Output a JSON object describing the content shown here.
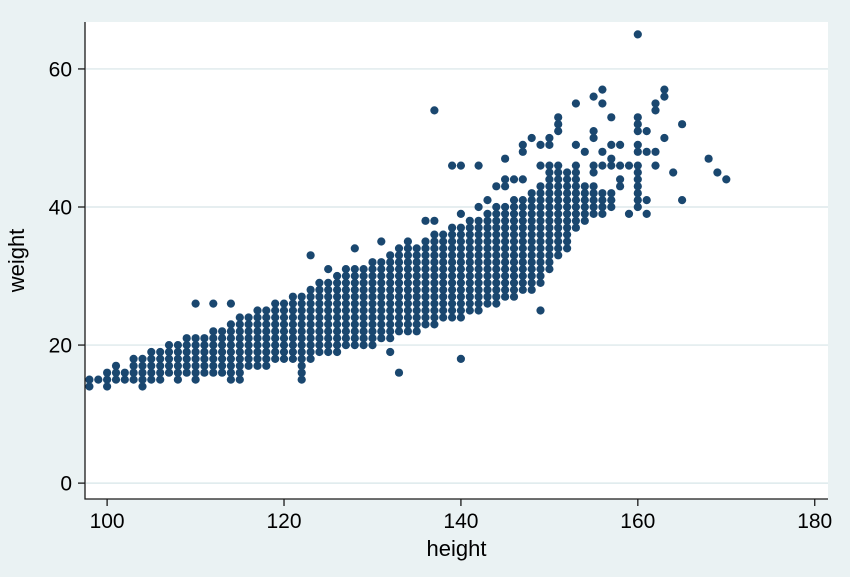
{
  "chart_data": {
    "type": "scatter",
    "title": "",
    "xlabel": "height",
    "ylabel": "weight",
    "xlim": [
      97.5,
      181.5
    ],
    "ylim": [
      -2.3,
      66.8
    ],
    "xticks": [
      100,
      120,
      140,
      160,
      180
    ],
    "yticks": [
      0,
      20,
      40,
      60
    ],
    "grid": "horizontal-at-yticks",
    "legend": "none",
    "marker": "filled-circle",
    "colors": {
      "background": "#eaf2f3",
      "plot_background": "#ffffff",
      "gridline": "#dde9ec",
      "axis_line": "#1a1a1a",
      "marker_fill": "#1a476f",
      "text": "#000000"
    },
    "columns_note": "dense integer-valued data encoded as [height, weight_min, weight_max]; one point at every integer weight in range",
    "columns": [
      [
        98,
        14,
        15
      ],
      [
        99,
        15,
        15
      ],
      [
        100,
        14,
        16
      ],
      [
        101,
        15,
        17
      ],
      [
        102,
        15,
        16
      ],
      [
        103,
        15,
        18
      ],
      [
        104,
        14,
        18
      ],
      [
        105,
        15,
        19
      ],
      [
        106,
        15,
        19
      ],
      [
        107,
        16,
        20
      ],
      [
        108,
        15,
        20
      ],
      [
        109,
        16,
        21
      ],
      [
        110,
        15,
        21
      ],
      [
        111,
        16,
        21
      ],
      [
        112,
        16,
        22
      ],
      [
        113,
        16,
        22
      ],
      [
        114,
        16,
        23
      ],
      [
        115,
        16,
        24
      ],
      [
        116,
        17,
        24
      ],
      [
        117,
        17,
        25
      ],
      [
        118,
        17,
        25
      ],
      [
        119,
        18,
        26
      ],
      [
        120,
        18,
        26
      ],
      [
        121,
        18,
        27
      ],
      [
        122,
        16,
        27
      ],
      [
        123,
        18,
        28
      ],
      [
        124,
        19,
        29
      ],
      [
        125,
        19,
        29
      ],
      [
        126,
        19,
        30
      ],
      [
        127,
        20,
        30
      ],
      [
        128,
        20,
        31
      ],
      [
        129,
        20,
        31
      ],
      [
        130,
        20,
        32
      ],
      [
        131,
        21,
        32
      ],
      [
        132,
        21,
        33
      ],
      [
        133,
        22,
        33
      ],
      [
        134,
        22,
        34
      ],
      [
        135,
        22,
        34
      ],
      [
        136,
        23,
        35
      ],
      [
        137,
        23,
        36
      ],
      [
        138,
        24,
        36
      ],
      [
        139,
        24,
        37
      ],
      [
        140,
        24,
        37
      ],
      [
        141,
        25,
        38
      ],
      [
        142,
        25,
        38
      ],
      [
        143,
        26,
        39
      ],
      [
        144,
        26,
        40
      ],
      [
        145,
        27,
        40
      ],
      [
        146,
        27,
        41
      ],
      [
        147,
        28,
        41
      ],
      [
        148,
        28,
        42
      ],
      [
        149,
        29,
        43
      ],
      [
        150,
        31,
        46
      ],
      [
        151,
        33,
        46
      ],
      [
        152,
        34,
        45
      ],
      [
        153,
        37,
        44
      ],
      [
        154,
        38,
        43
      ],
      [
        155,
        39,
        43
      ],
      [
        156,
        39,
        42
      ],
      [
        157,
        40,
        42
      ],
      [
        160,
        40,
        46
      ]
    ],
    "points_note": "individual points as [height, weight]",
    "points": [
      [
        110,
        26
      ],
      [
        112,
        26
      ],
      [
        114,
        26
      ],
      [
        114,
        15
      ],
      [
        115,
        15
      ],
      [
        122,
        15
      ],
      [
        123,
        33
      ],
      [
        125,
        31
      ],
      [
        127,
        31
      ],
      [
        128,
        34
      ],
      [
        131,
        35
      ],
      [
        132,
        19
      ],
      [
        133,
        16
      ],
      [
        133,
        34
      ],
      [
        134,
        35
      ],
      [
        136,
        38
      ],
      [
        137,
        38
      ],
      [
        137,
        54
      ],
      [
        139,
        46
      ],
      [
        140,
        18
      ],
      [
        140,
        39
      ],
      [
        140,
        46
      ],
      [
        142,
        40
      ],
      [
        142,
        46
      ],
      [
        143,
        41
      ],
      [
        144,
        43
      ],
      [
        145,
        43
      ],
      [
        145,
        44
      ],
      [
        145,
        47
      ],
      [
        146,
        44
      ],
      [
        147,
        44
      ],
      [
        147,
        48
      ],
      [
        147,
        49
      ],
      [
        148,
        50
      ],
      [
        149,
        25
      ],
      [
        149,
        46
      ],
      [
        149,
        49
      ],
      [
        150,
        49
      ],
      [
        150,
        50
      ],
      [
        151,
        51
      ],
      [
        151,
        52
      ],
      [
        151,
        53
      ],
      [
        153,
        45
      ],
      [
        153,
        46
      ],
      [
        153,
        49
      ],
      [
        153,
        55
      ],
      [
        154,
        48
      ],
      [
        155,
        45
      ],
      [
        155,
        46
      ],
      [
        155,
        50
      ],
      [
        155,
        51
      ],
      [
        155,
        56
      ],
      [
        156,
        46
      ],
      [
        156,
        48
      ],
      [
        156,
        55
      ],
      [
        156,
        57
      ],
      [
        157,
        46
      ],
      [
        157,
        47
      ],
      [
        157,
        49
      ],
      [
        157,
        53
      ],
      [
        158,
        43
      ],
      [
        158,
        44
      ],
      [
        158,
        46
      ],
      [
        158,
        49
      ],
      [
        159,
        39
      ],
      [
        159,
        46
      ],
      [
        160,
        48
      ],
      [
        160,
        49
      ],
      [
        160,
        51
      ],
      [
        160,
        52
      ],
      [
        160,
        53
      ],
      [
        160,
        65
      ],
      [
        161,
        39
      ],
      [
        161,
        41
      ],
      [
        161,
        48
      ],
      [
        161,
        51
      ],
      [
        162,
        46
      ],
      [
        162,
        48
      ],
      [
        162,
        54
      ],
      [
        162,
        55
      ],
      [
        163,
        50
      ],
      [
        163,
        56
      ],
      [
        163,
        57
      ],
      [
        164,
        45
      ],
      [
        165,
        41
      ],
      [
        165,
        52
      ],
      [
        168,
        47
      ],
      [
        169,
        45
      ],
      [
        170,
        44
      ]
    ]
  }
}
